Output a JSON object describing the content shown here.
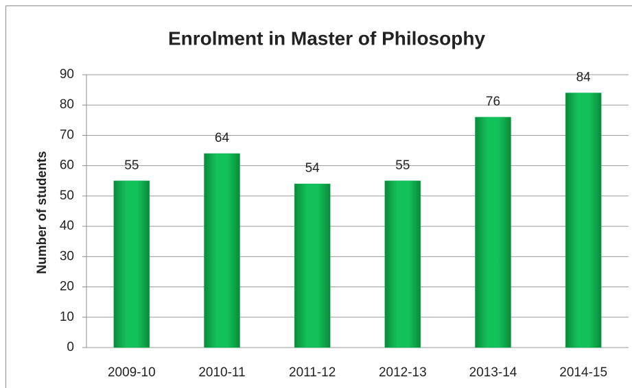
{
  "chart_data": {
    "type": "bar",
    "title": "Enrolment in Master of Philosophy",
    "y_label": "Number of students",
    "categories": [
      "2009-10",
      "2010-11",
      "2011-12",
      "2012-13",
      "2013-14",
      "2014-15"
    ],
    "values": [
      55,
      64,
      54,
      55,
      76,
      84
    ],
    "color": "#10b050",
    "ylim": [
      0,
      90
    ],
    "yticks": [
      0,
      10,
      20,
      30,
      40,
      50,
      60,
      70,
      80,
      90
    ],
    "grid": true
  }
}
